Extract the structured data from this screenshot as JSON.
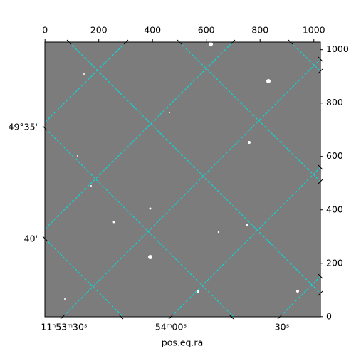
{
  "chart_data": {
    "type": "image",
    "xlabel": "pos.eq.ra",
    "xlim": [
      -0.5,
      1024.5
    ],
    "ylim": [
      -0.5,
      1028.5
    ],
    "xticks": [
      0,
      200,
      400,
      600,
      800,
      1000
    ],
    "yticks": [
      0,
      200,
      400,
      600,
      800,
      1000
    ],
    "ra_labels": [
      "11ʰ53ᵐ30ˢ",
      "54ᵐ00ˢ",
      "30ˢ"
    ],
    "dec_labels": [
      "49°35'",
      "40'"
    ],
    "grid": true,
    "grid_color": "#00e0e0"
  }
}
